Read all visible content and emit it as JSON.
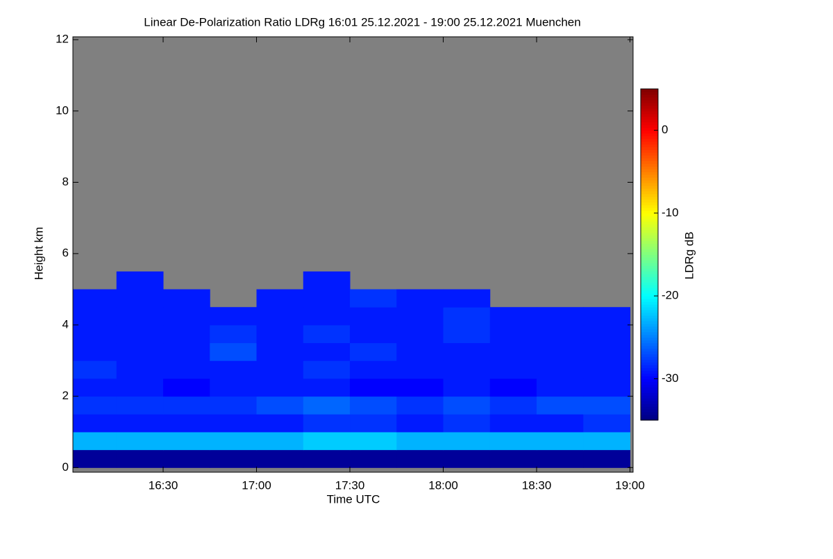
{
  "chart_data": {
    "type": "heatmap",
    "title": "Linear De-Polarization Ratio LDRg   16:01 25.12.2021 - 19:00 25.12.2021 Muenchen",
    "xlabel": "Time UTC",
    "ylabel": "Height km",
    "colorbar_label": "LDRg dB",
    "xlim": [
      961,
      1141
    ],
    "xticks": [
      {
        "value": 990,
        "label": "16:30"
      },
      {
        "value": 1020,
        "label": "17:00"
      },
      {
        "value": 1050,
        "label": "17:30"
      },
      {
        "value": 1080,
        "label": "18:00"
      },
      {
        "value": 1110,
        "label": "18:30"
      },
      {
        "value": 1140,
        "label": "19:00"
      }
    ],
    "ylim": [
      -0.13,
      12.08
    ],
    "yticks": [
      0,
      2,
      4,
      6,
      8,
      10,
      12
    ],
    "x_bins": [
      961,
      975,
      990,
      1005,
      1020,
      1035,
      1050,
      1065,
      1080,
      1095,
      1110,
      1125,
      1140
    ],
    "y_bins": [
      0,
      0.5,
      1.0,
      1.5,
      2.0,
      2.5,
      3.0,
      3.5,
      4.0,
      4.5,
      5.0,
      5.5
    ],
    "z": [
      [
        -34,
        -34,
        -34,
        -34,
        -34,
        -34,
        -34,
        -34,
        -34,
        -34,
        -34,
        -34
      ],
      [
        -23,
        -23,
        -23,
        -23,
        -23,
        -22,
        -22,
        -23,
        -23,
        -23,
        -23,
        -23
      ],
      [
        -29,
        -29,
        -29,
        -29,
        -29,
        -28,
        -28,
        -29,
        -28,
        -29,
        -29,
        -28
      ],
      [
        -28,
        -28,
        -28,
        -28,
        -27,
        -26,
        -27,
        -28,
        -27,
        -28,
        -27,
        -27
      ],
      [
        -29,
        -29,
        -30,
        -29,
        -29,
        -29,
        -30,
        -30,
        -29,
        -30,
        -29,
        -29
      ],
      [
        -28,
        -29,
        -29,
        -29,
        -29,
        -28,
        -29,
        -29,
        -29,
        -29,
        -29,
        -29
      ],
      [
        -29,
        -29,
        -29,
        -27,
        -29,
        -29,
        -28,
        -29,
        -29,
        -29,
        -29,
        -29
      ],
      [
        -29,
        -29,
        -29,
        -28,
        -29,
        -28,
        -29,
        -29,
        -28,
        -29,
        -29,
        -29
      ],
      [
        -29,
        -29,
        -29,
        -29,
        -29,
        -29,
        -29,
        -29,
        -28,
        -29,
        -29,
        -29
      ],
      [
        -29,
        -29,
        -29,
        null,
        -29,
        -29,
        -28,
        -29,
        -29,
        null,
        null,
        null
      ],
      [
        null,
        -29,
        null,
        null,
        null,
        -29,
        null,
        null,
        null,
        null,
        null,
        null
      ]
    ],
    "missing_color": "#808080",
    "colormap": "jet",
    "clim": [
      -35,
      5
    ],
    "cticks": [
      0,
      -10,
      -20,
      -30
    ]
  }
}
